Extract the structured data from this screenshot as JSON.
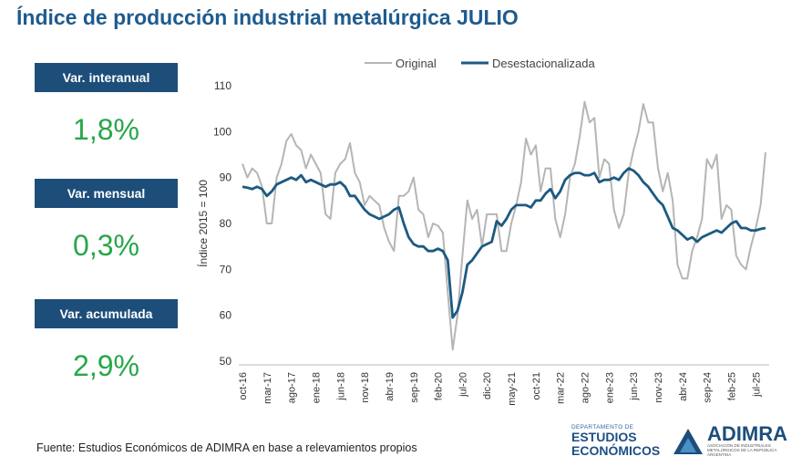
{
  "title": "Índice de producción industrial metalúrgica JULIO",
  "kpis": [
    {
      "label": "Var. interanual",
      "value": "1,8%"
    },
    {
      "label": "Var. mensual",
      "value": "0,3%"
    },
    {
      "label": "Var. acumulada",
      "value": "2,9%"
    }
  ],
  "source": "Fuente: Estudios Económicos de ADIMRA en base a relevamientos propios",
  "logos": {
    "dept_small": "DEPARTAMENTO DE",
    "dept_line1": "ESTUDIOS",
    "dept_line2": "ECONÓMICOS",
    "adimra": "ADIMRA",
    "adimra_sub": "ASOCIACIÓN DE INDUSTRIALES METALÚRGICOS DE LA REPÚBLICA ARGENTINA"
  },
  "colors": {
    "original": "#b5b5b5",
    "desest": "#1d5a80",
    "kpi_bg": "#1d4e7a",
    "kpi_value": "#27a74a",
    "title": "#1e5b8e"
  },
  "chart_data": {
    "type": "line",
    "ylabel": "Índice 2015 = 100",
    "ylim": [
      50,
      110
    ],
    "yticks": [
      50,
      60,
      70,
      80,
      90,
      100,
      110
    ],
    "x_start": "oct-16",
    "x_end": "jul-25",
    "x_tick_labels": [
      "oct-16",
      "mar-17",
      "ago-17",
      "ene-18",
      "jun-18",
      "nov-18",
      "abr-19",
      "sep-19",
      "feb-20",
      "jul-20",
      "dic-20",
      "may-21",
      "oct-21",
      "mar-22",
      "ago-22",
      "ene-23",
      "jun-23",
      "nov-23",
      "abr-24",
      "sep-24",
      "feb-25",
      "jul-25"
    ],
    "legend_position": "top",
    "grid": false,
    "series": [
      {
        "name": "Original",
        "values": [
          93,
          90,
          92,
          91,
          88,
          80,
          80,
          90,
          93,
          98,
          99.5,
          97,
          96,
          92,
          95,
          93,
          91,
          82,
          81,
          91,
          93,
          94,
          97.5,
          91,
          89,
          84,
          86,
          85,
          84,
          79,
          76,
          74,
          86,
          86,
          87,
          90,
          83,
          82,
          77,
          80,
          79.5,
          78,
          65,
          52.5,
          60,
          73,
          85,
          81,
          83,
          75,
          82,
          82,
          82,
          74,
          74,
          80,
          84,
          89,
          98.5,
          95,
          97,
          87,
          92,
          92,
          81,
          77,
          82,
          90,
          93,
          99,
          106.5,
          102,
          103,
          90,
          94,
          93,
          83,
          79,
          82,
          91,
          96,
          100,
          106,
          102,
          102,
          92,
          87,
          91,
          85,
          71,
          68,
          68,
          74,
          77,
          81,
          94,
          92,
          95,
          81,
          84,
          83,
          73,
          71,
          70,
          75,
          79,
          84,
          95.5
        ]
      },
      {
        "name": "Desestacionalizada",
        "values": [
          88,
          87.8,
          87.5,
          88,
          87.5,
          86,
          87,
          88.5,
          89,
          89.5,
          90,
          89.5,
          90.5,
          89,
          89.5,
          89,
          88.5,
          88,
          88.5,
          88.5,
          89,
          88,
          86,
          86,
          84.5,
          83,
          82,
          81.5,
          81,
          81.5,
          82,
          83,
          83.5,
          80,
          77,
          75.5,
          75,
          75,
          74,
          74,
          74.5,
          74,
          72,
          59.5,
          61,
          65,
          71,
          72,
          73.5,
          75,
          75.5,
          76,
          80.5,
          79.5,
          81,
          83,
          84,
          84,
          84,
          83.5,
          85,
          85,
          86.5,
          87.5,
          85.5,
          87,
          89.5,
          90.5,
          91,
          91,
          90.5,
          90.5,
          91,
          89,
          89.5,
          89.5,
          90,
          89.5,
          91,
          92,
          91.5,
          90.5,
          89,
          88,
          86.5,
          85,
          84,
          81.5,
          79,
          78.5,
          77.5,
          76.5,
          77,
          76,
          77,
          77.5,
          78,
          78.5,
          78,
          79,
          80,
          80.5,
          79,
          79,
          78.5,
          78.5,
          78.8,
          79
        ]
      }
    ]
  }
}
